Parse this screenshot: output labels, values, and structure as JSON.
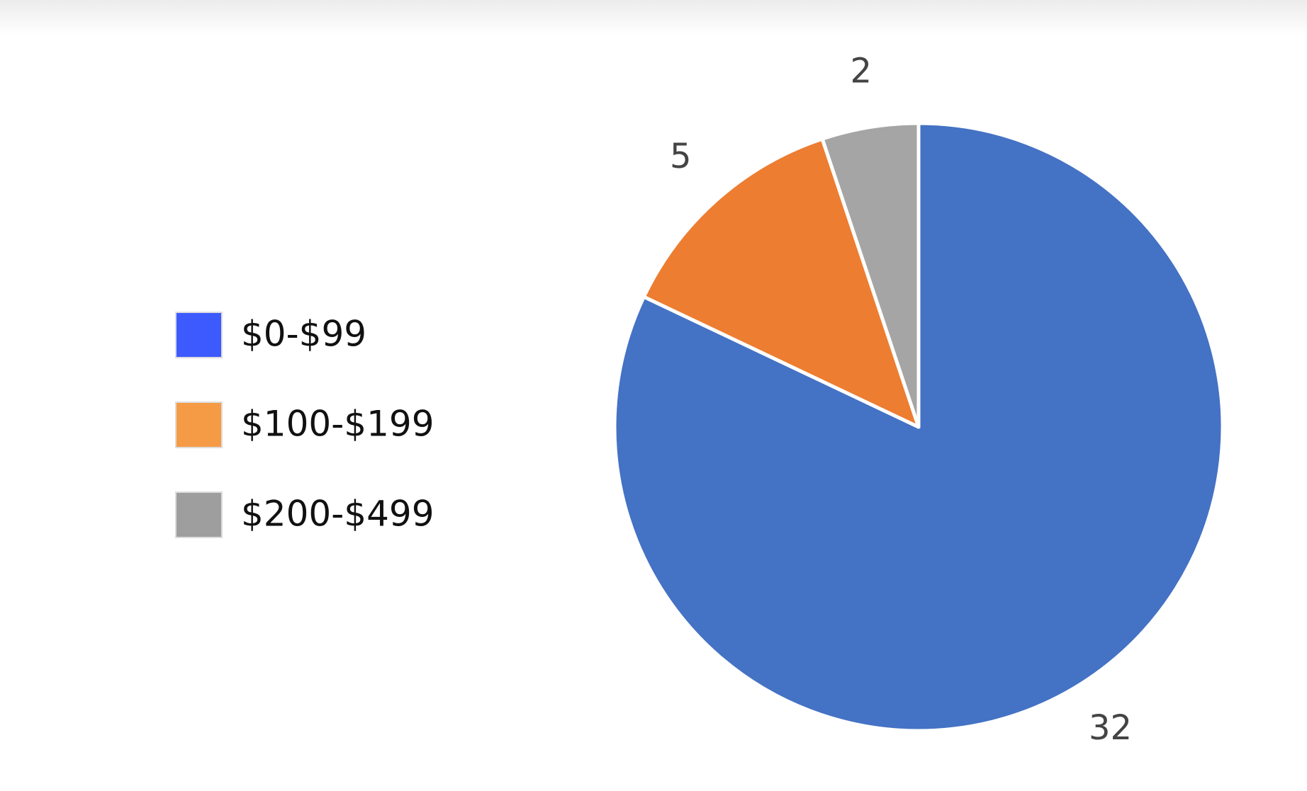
{
  "chart_data": {
    "type": "pie",
    "categories": [
      "$0-$99",
      "$100-$199",
      "$200-$499"
    ],
    "values": [
      32,
      5,
      2
    ],
    "colors": [
      "#4472c4",
      "#ed7d31",
      "#a5a5a5"
    ],
    "legend_colors": [
      "#3d5afe",
      "#f59b45",
      "#9e9e9e"
    ],
    "legend": "left"
  }
}
